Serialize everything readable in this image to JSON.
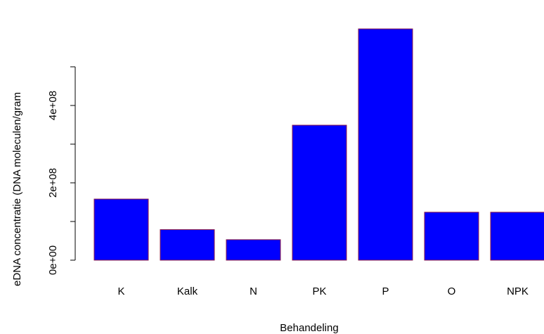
{
  "chart_data": {
    "type": "bar",
    "categories": [
      "K",
      "Kalk",
      "N",
      "PK",
      "P",
      "O",
      "NPK"
    ],
    "values": [
      158000000,
      79000000,
      53000000,
      349000000,
      598000000,
      124000000,
      124000000
    ],
    "xlabel": "Behandeling",
    "ylabel": "eDNA concentratie (DNA moleculen/gram",
    "ylim": [
      0,
      500000000
    ],
    "yticks": [
      0,
      200000000,
      400000000
    ],
    "ytick_labels": [
      "0e+00",
      "2e+08",
      "4e+08"
    ],
    "minor_ticks": [
      100000000,
      300000000,
      500000000
    ],
    "grid": false,
    "legend": "none",
    "bar_fill": "#0000ff",
    "bar_stroke": "#8b1a4a"
  }
}
